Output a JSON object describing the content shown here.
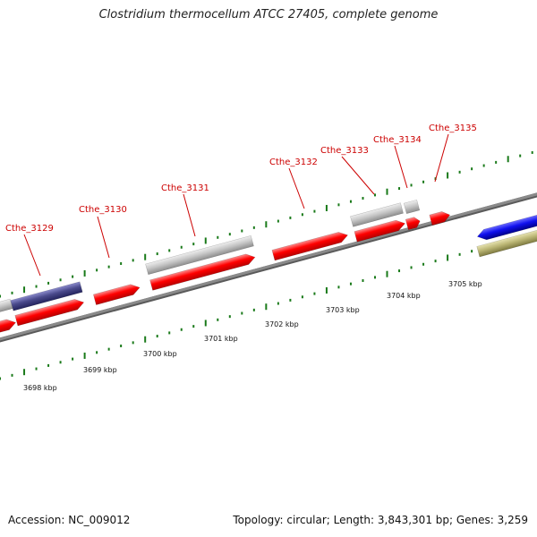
{
  "title": "Clostridium thermocellum ATCC 27405, complete genome",
  "footer": {
    "accession": "Accession: NC_009012",
    "summary": "Topology: circular; Length: 3,843,301 bp; Genes: 3,259"
  },
  "colors": {
    "label_red": "#cc0000",
    "cds_red": "#ff0000",
    "gene_gray": "#c8c8c8",
    "navy": "#4a4a8c",
    "blue": "#1010ee",
    "olive": "#bdb877",
    "tick_green": "#1a7a1a",
    "backbone": "#8a8a8a"
  },
  "gene_labels": [
    "Cthe_3129",
    "Cthe_3130",
    "Cthe_3131",
    "Cthe_3132",
    "Cthe_3133",
    "Cthe_3134",
    "Cthe_3135"
  ],
  "kbp_labels": [
    "3698 kbp",
    "3699 kbp",
    "3700 kbp",
    "3701 kbp",
    "3702 kbp",
    "3703 kbp",
    "3704 kbp",
    "3705 kbp"
  ]
}
